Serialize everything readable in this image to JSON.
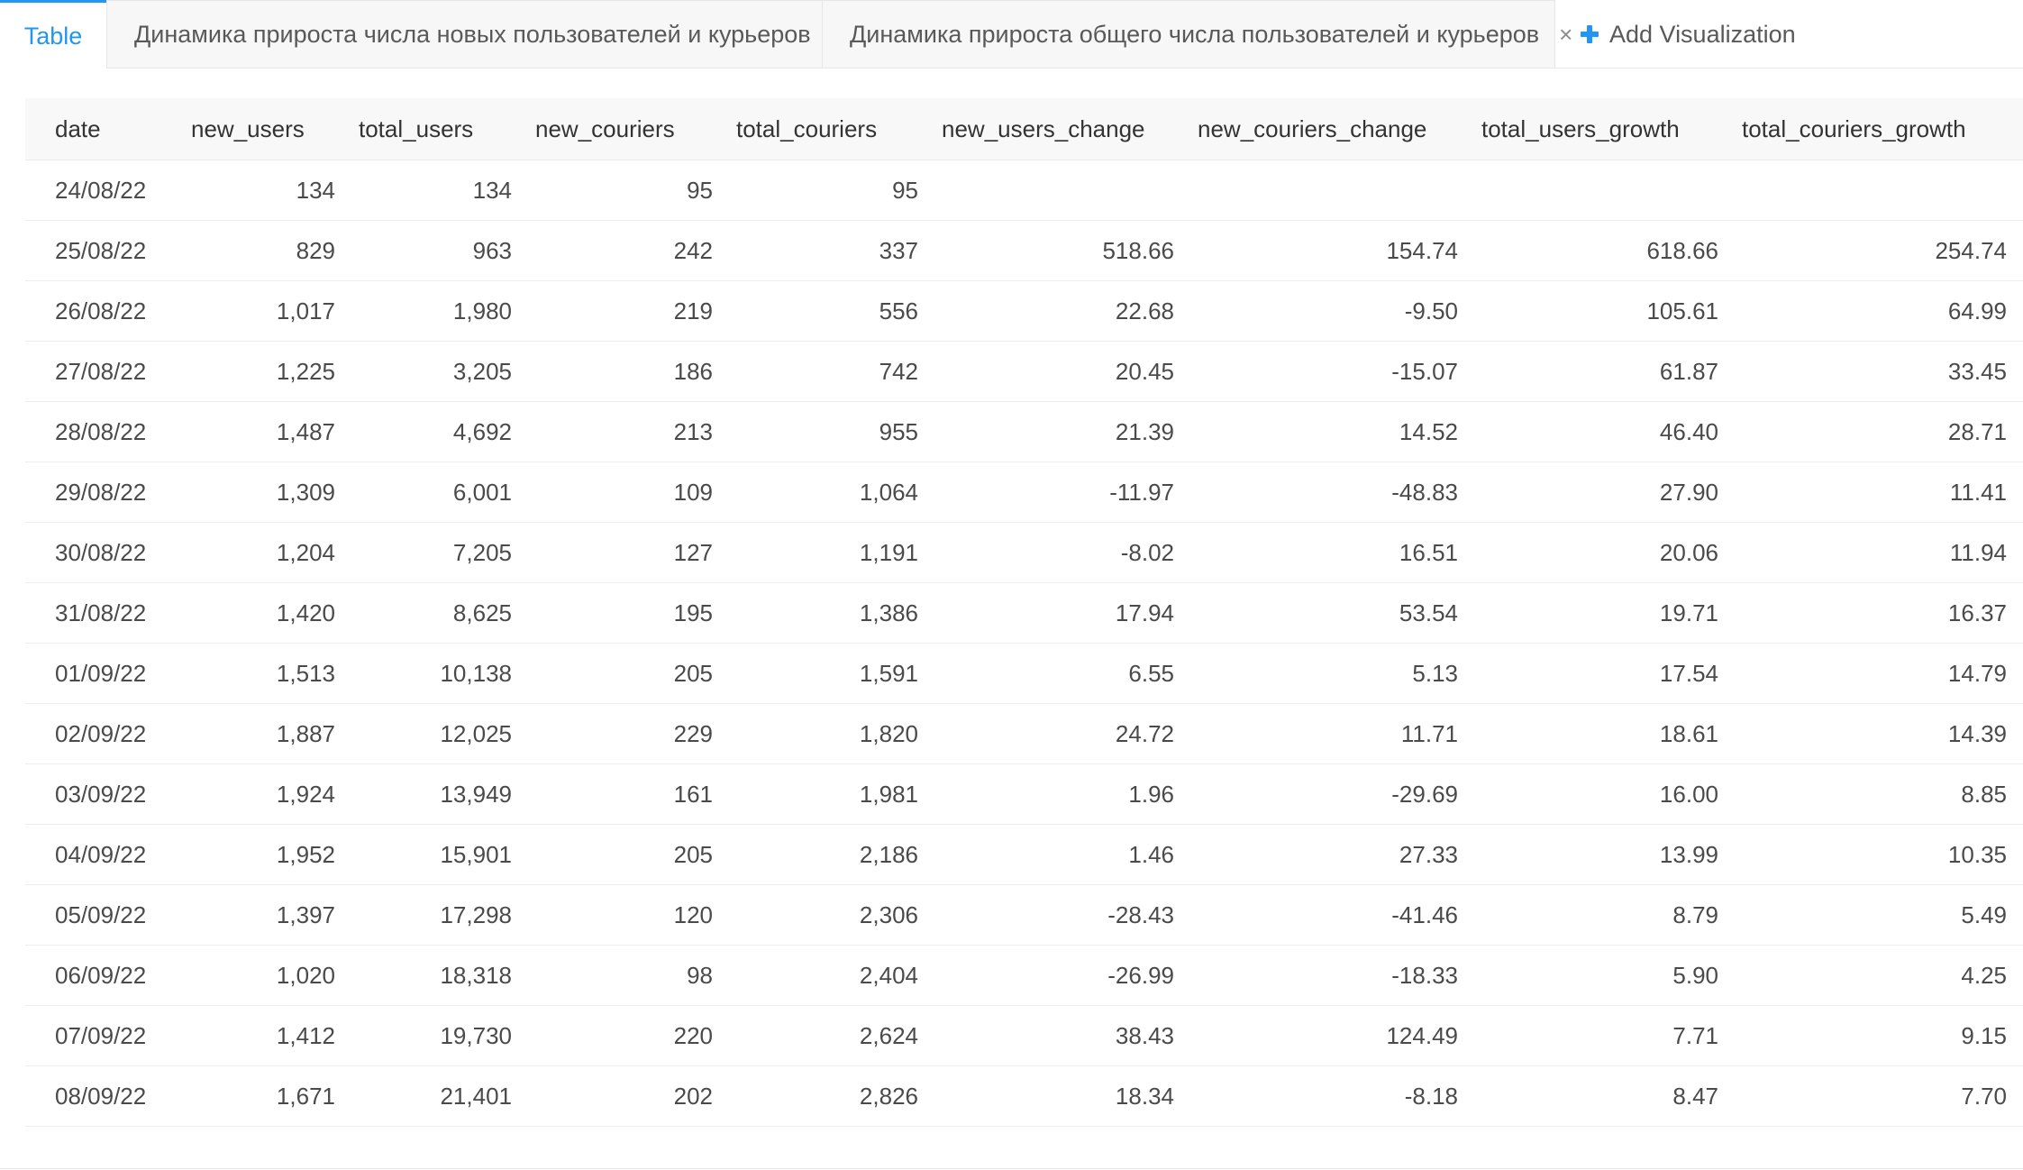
{
  "tabs": [
    {
      "label": "Table",
      "active": true
    },
    {
      "label": "Динамика прироста числа новых пользователей и курьеров",
      "closable": true
    },
    {
      "label": "Динамика прироста общего числа пользователей и курьеров",
      "closable": true
    }
  ],
  "tab_close_glyph": "×",
  "add_visualization_label": "Add Visualization",
  "colors": {
    "accent": "#2196f3",
    "header_bg": "#f8f8f8",
    "row_border": "#eeeeee"
  },
  "table": {
    "columns": [
      "date",
      "new_users",
      "total_users",
      "new_couriers",
      "total_couriers",
      "new_users_change",
      "new_couriers_change",
      "total_users_growth",
      "total_couriers_growth"
    ],
    "rows": [
      [
        "24/08/22",
        "134",
        "134",
        "95",
        "95",
        "",
        "",
        "",
        ""
      ],
      [
        "25/08/22",
        "829",
        "963",
        "242",
        "337",
        "518.66",
        "154.74",
        "618.66",
        "254.74"
      ],
      [
        "26/08/22",
        "1,017",
        "1,980",
        "219",
        "556",
        "22.68",
        "-9.50",
        "105.61",
        "64.99"
      ],
      [
        "27/08/22",
        "1,225",
        "3,205",
        "186",
        "742",
        "20.45",
        "-15.07",
        "61.87",
        "33.45"
      ],
      [
        "28/08/22",
        "1,487",
        "4,692",
        "213",
        "955",
        "21.39",
        "14.52",
        "46.40",
        "28.71"
      ],
      [
        "29/08/22",
        "1,309",
        "6,001",
        "109",
        "1,064",
        "-11.97",
        "-48.83",
        "27.90",
        "11.41"
      ],
      [
        "30/08/22",
        "1,204",
        "7,205",
        "127",
        "1,191",
        "-8.02",
        "16.51",
        "20.06",
        "11.94"
      ],
      [
        "31/08/22",
        "1,420",
        "8,625",
        "195",
        "1,386",
        "17.94",
        "53.54",
        "19.71",
        "16.37"
      ],
      [
        "01/09/22",
        "1,513",
        "10,138",
        "205",
        "1,591",
        "6.55",
        "5.13",
        "17.54",
        "14.79"
      ],
      [
        "02/09/22",
        "1,887",
        "12,025",
        "229",
        "1,820",
        "24.72",
        "11.71",
        "18.61",
        "14.39"
      ],
      [
        "03/09/22",
        "1,924",
        "13,949",
        "161",
        "1,981",
        "1.96",
        "-29.69",
        "16.00",
        "8.85"
      ],
      [
        "04/09/22",
        "1,952",
        "15,901",
        "205",
        "2,186",
        "1.46",
        "27.33",
        "13.99",
        "10.35"
      ],
      [
        "05/09/22",
        "1,397",
        "17,298",
        "120",
        "2,306",
        "-28.43",
        "-41.46",
        "8.79",
        "5.49"
      ],
      [
        "06/09/22",
        "1,020",
        "18,318",
        "98",
        "2,404",
        "-26.99",
        "-18.33",
        "5.90",
        "4.25"
      ],
      [
        "07/09/22",
        "1,412",
        "19,730",
        "220",
        "2,624",
        "38.43",
        "124.49",
        "7.71",
        "9.15"
      ],
      [
        "08/09/22",
        "1,671",
        "21,401",
        "202",
        "2,826",
        "18.34",
        "-8.18",
        "8.47",
        "7.70"
      ]
    ]
  }
}
